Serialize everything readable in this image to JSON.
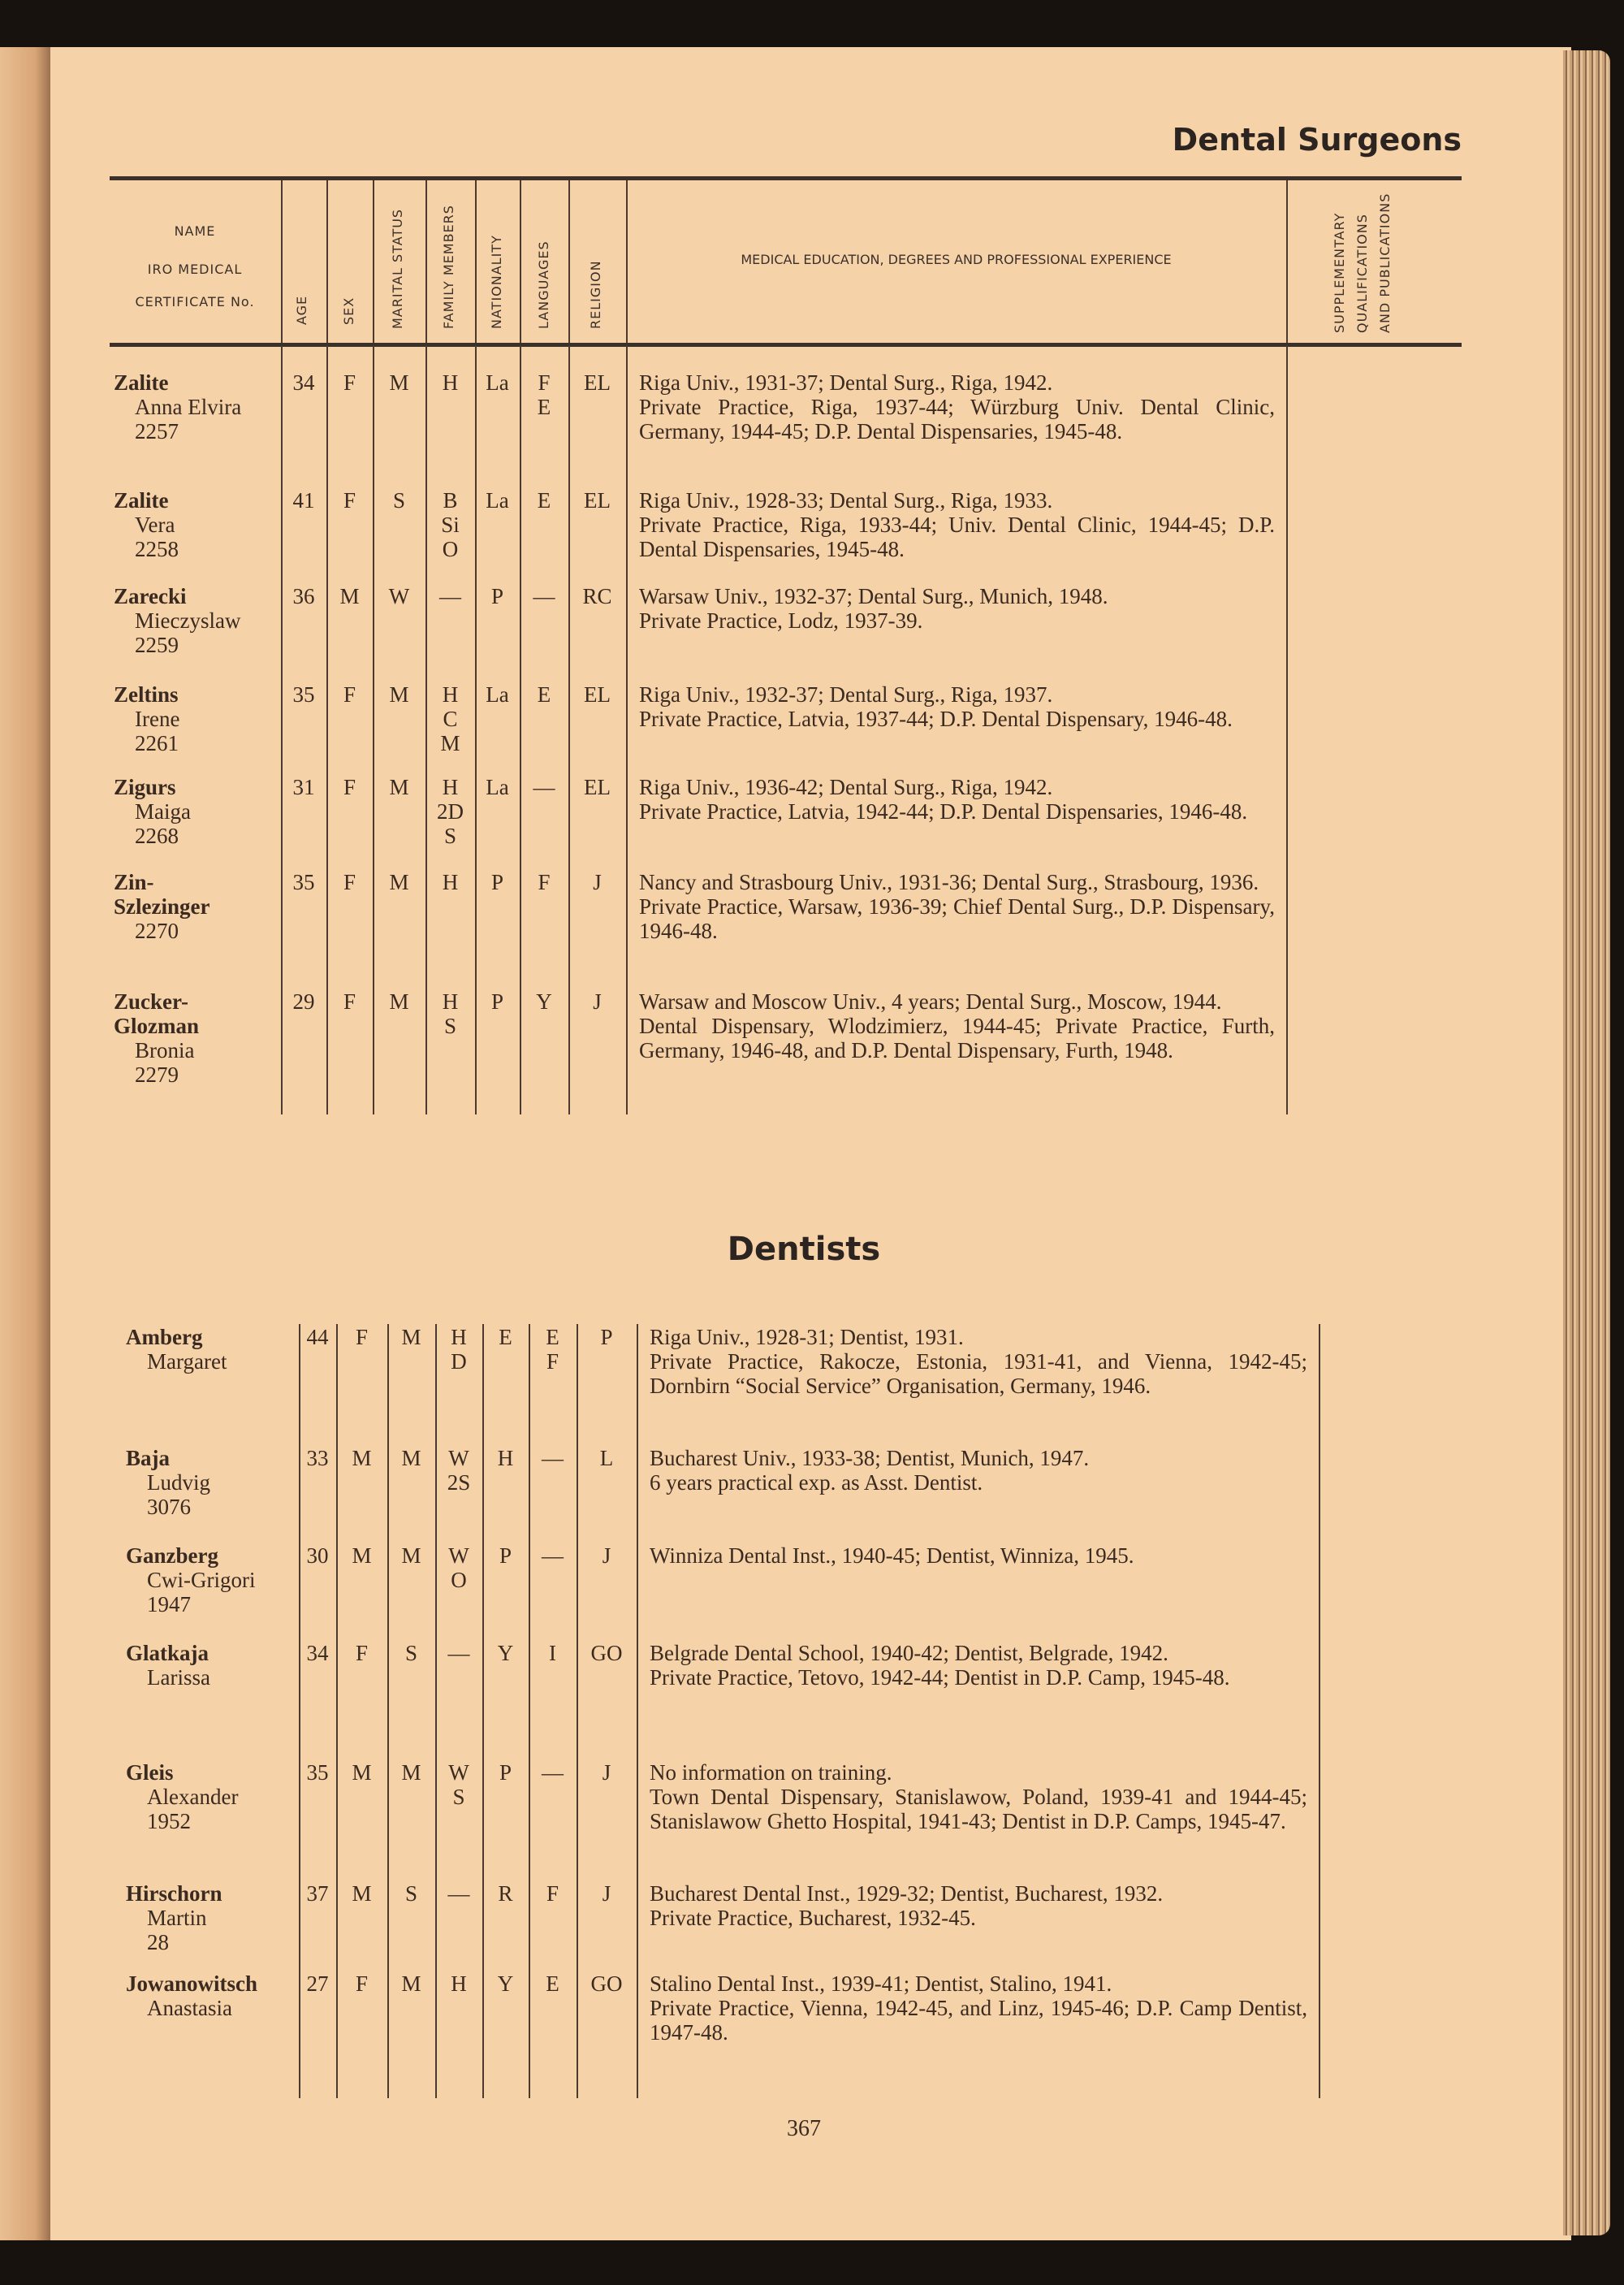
{
  "section_title": "Dental Surgeons",
  "subsection_title": "Dentists",
  "page_number": "367",
  "header": {
    "name": "NAME",
    "iro": "IRO MEDICAL",
    "cert": "CERTIFICATE No.",
    "age": "AGE",
    "sex": "SEX",
    "marital": "MARITAL STATUS",
    "family": "FAMILY MEMBERS",
    "nationality": "NATIONALITY",
    "languages": "LANGUAGES",
    "religion": "RELIGION",
    "experience": "MEDICAL EDUCATION, DEGREES AND PROFESSIONAL EXPERIENCE",
    "supp1": "SUPPLEMENTARY",
    "supp2": "QUALIFICATIONS",
    "supp3": "AND PUBLICATIONS"
  },
  "dental_surgeons": [
    {
      "surname": "Zalite",
      "given": "Anna Elvira",
      "cert": "2257",
      "age": "34",
      "sex": "F",
      "marital": "M",
      "family": [
        "H"
      ],
      "nationality": "La",
      "languages": [
        "F",
        "E"
      ],
      "religion": "EL",
      "experience": [
        "Riga Univ., 1931-37; Dental Surg., Riga, 1942.",
        "Private Practice, Riga, 1937-44; Würzburg Univ. Dental Clinic, Germany, 1944-45; D.P. Dental Dispensaries, 1945-48."
      ]
    },
    {
      "surname": "Zalite",
      "given": "Vera",
      "cert": "2258",
      "age": "41",
      "sex": "F",
      "marital": "S",
      "family": [
        "B",
        "Si",
        "O"
      ],
      "nationality": "La",
      "languages": [
        "E"
      ],
      "religion": "EL",
      "experience": [
        "Riga Univ., 1928-33; Dental Surg., Riga, 1933.",
        "Private Practice, Riga, 1933-44; Univ. Dental Clinic, 1944-45; D.P. Dental Dispensaries, 1945-48."
      ]
    },
    {
      "surname": "Zarecki",
      "given": "Mieczyslaw",
      "cert": "2259",
      "age": "36",
      "sex": "M",
      "marital": "W",
      "family": [
        "—"
      ],
      "nationality": "P",
      "languages": [
        "—"
      ],
      "religion": "RC",
      "experience": [
        "Warsaw Univ., 1932-37; Dental Surg., Munich, 1948.",
        "Private Practice, Lodz, 1937-39."
      ]
    },
    {
      "surname": "Zeltins",
      "given": "Irene",
      "cert": "2261",
      "age": "35",
      "sex": "F",
      "marital": "M",
      "family": [
        "H",
        "C",
        "M"
      ],
      "nationality": "La",
      "languages": [
        "E"
      ],
      "religion": "EL",
      "experience": [
        "Riga Univ., 1932-37; Dental Surg., Riga, 1937.",
        "Private Practice, Latvia, 1937-44; D.P. Dental Dispensary, 1946-48."
      ]
    },
    {
      "surname": "Zigurs",
      "given": "Maiga",
      "cert": "2268",
      "age": "31",
      "sex": "F",
      "marital": "M",
      "family": [
        "H",
        "2D",
        "S"
      ],
      "nationality": "La",
      "languages": [
        "—"
      ],
      "religion": "EL",
      "experience": [
        "Riga Univ., 1936-42; Dental Surg., Riga, 1942.",
        "Private Practice, Latvia, 1942-44; D.P. Dental Dispensaries, 1946-48."
      ]
    },
    {
      "surname": "Zin-",
      "surname2": "Szlezinger",
      "given": "",
      "cert": "2270",
      "age": "35",
      "sex": "F",
      "marital": "M",
      "family": [
        "H"
      ],
      "nationality": "P",
      "languages": [
        "F"
      ],
      "religion": "J",
      "experience": [
        "Nancy and Strasbourg Univ., 1931-36; Dental Surg., Strasbourg, 1936.",
        "Private Practice, Warsaw, 1936-39; Chief Dental Surg., D.P. Dispensary, 1946-48."
      ]
    },
    {
      "surname": "Zucker-",
      "surname2": "Glozman",
      "given": "Bronia",
      "cert": "2279",
      "age": "29",
      "sex": "F",
      "marital": "M",
      "family": [
        "H",
        "S"
      ],
      "nationality": "P",
      "languages": [
        "Y"
      ],
      "religion": "J",
      "experience": [
        "Warsaw and Moscow Univ., 4 years; Dental Surg., Moscow, 1944.",
        "Dental Dispensary, Wlodzimierz, 1944-45; Private Practice, Furth, Germany, 1946-48, and D.P. Dental Dispensary, Furth, 1948."
      ]
    }
  ],
  "dentists": [
    {
      "surname": "Amberg",
      "given": "Margaret",
      "cert": "",
      "age": "44",
      "sex": "F",
      "marital": "M",
      "family": [
        "H",
        "D"
      ],
      "nationality": "E",
      "languages": [
        "E",
        "F"
      ],
      "religion": "P",
      "experience": [
        "Riga Univ., 1928-31; Dentist, 1931.",
        "Private Practice, Rakocze, Estonia, 1931-41, and Vienna, 1942-45; Dornbirn “Social Service” Organisation, Germany, 1946."
      ]
    },
    {
      "surname": "Baja",
      "given": "Ludvig",
      "cert": "3076",
      "age": "33",
      "sex": "M",
      "marital": "M",
      "family": [
        "W",
        "2S"
      ],
      "nationality": "H",
      "languages": [
        "—"
      ],
      "religion": "L",
      "experience": [
        "Bucharest Univ., 1933-38; Dentist, Munich, 1947.",
        "6 years practical exp. as Asst. Dentist."
      ]
    },
    {
      "surname": "Ganzberg",
      "given": "Cwi-Grigori",
      "cert": "1947",
      "age": "30",
      "sex": "M",
      "marital": "M",
      "family": [
        "W",
        "O"
      ],
      "nationality": "P",
      "languages": [
        "—"
      ],
      "religion": "J",
      "experience": [
        "Winniza Dental Inst., 1940-45; Dentist, Winniza, 1945."
      ]
    },
    {
      "surname": "Glatkaja",
      "given": "Larissa",
      "cert": "",
      "age": "34",
      "sex": "F",
      "marital": "S",
      "family": [
        "—"
      ],
      "nationality": "Y",
      "languages": [
        "I"
      ],
      "religion": "GO",
      "experience": [
        "Belgrade Dental School, 1940-42; Dentist, Belgrade, 1942.",
        "Private Practice, Tetovo, 1942-44; Dentist in D.P. Camp, 1945-48."
      ]
    },
    {
      "surname": "Gleis",
      "given": "Alexander",
      "cert": "1952",
      "age": "35",
      "sex": "M",
      "marital": "M",
      "family": [
        "W",
        "S"
      ],
      "nationality": "P",
      "languages": [
        "—"
      ],
      "religion": "J",
      "experience": [
        "No information on training.",
        "Town Dental Dispensary, Stanislawow, Poland, 1939-41 and 1944-45; Stanislawow Ghetto Hospital, 1941-43; Dentist in D.P. Camps, 1945-47."
      ]
    },
    {
      "surname": "Hirschorn",
      "given": "Martin",
      "cert": "28",
      "age": "37",
      "sex": "M",
      "marital": "S",
      "family": [
        "—"
      ],
      "nationality": "R",
      "languages": [
        "F"
      ],
      "religion": "J",
      "experience": [
        "Bucharest Dental Inst., 1929-32; Dentist, Bucharest, 1932.",
        "Private Practice, Bucharest, 1932-45."
      ]
    },
    {
      "surname": "Jowanowitsch",
      "given": "Anastasia",
      "cert": "",
      "age": "27",
      "sex": "F",
      "marital": "M",
      "family": [
        "H"
      ],
      "nationality": "Y",
      "languages": [
        "E"
      ],
      "religion": "GO",
      "experience": [
        "Stalino Dental Inst., 1939-41; Dentist, Stalino, 1941.",
        "Private Practice, Vienna, 1942-45, and Linz, 1945-46; D.P. Camp Dentist, 1947-48."
      ]
    }
  ]
}
